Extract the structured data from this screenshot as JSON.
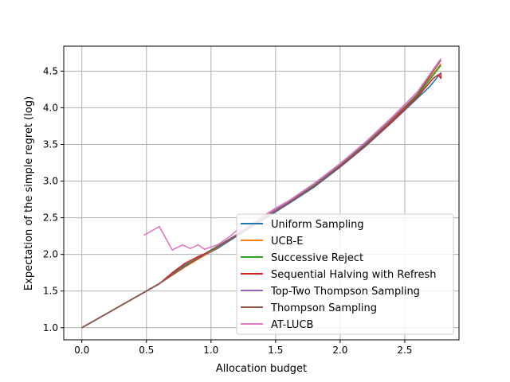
{
  "chart_data": {
    "type": "line",
    "title": "",
    "xlabel": "Allocation budget",
    "ylabel": "Expectation of the simple regret (log)",
    "xlim": [
      -0.14,
      2.92
    ],
    "ylim": [
      0.835,
      4.84
    ],
    "xticks": [
      0.0,
      0.5,
      1.0,
      1.5,
      2.0,
      2.5
    ],
    "xtick_labels": [
      "0.0",
      "0.5",
      "1.0",
      "1.5",
      "2.0",
      "2.5"
    ],
    "yticks": [
      1.0,
      1.5,
      2.0,
      2.5,
      3.0,
      3.5,
      4.0,
      4.5
    ],
    "ytick_labels": [
      "1.0",
      "1.5",
      "2.0",
      "2.5",
      "3.0",
      "3.5",
      "4.0",
      "4.5"
    ],
    "grid": true,
    "legend_position": "lower-right",
    "series": [
      {
        "name": "Uniform Sampling",
        "color": "#1f77b4",
        "points": [
          [
            0.0,
            1.0
          ],
          [
            0.2,
            1.2
          ],
          [
            0.4,
            1.4
          ],
          [
            0.6,
            1.6
          ],
          [
            0.8,
            1.86
          ],
          [
            0.95,
            1.99
          ],
          [
            1.05,
            2.08
          ],
          [
            1.2,
            2.25
          ],
          [
            1.4,
            2.47
          ],
          [
            1.6,
            2.69
          ],
          [
            1.8,
            2.92
          ],
          [
            2.0,
            3.19
          ],
          [
            2.2,
            3.48
          ],
          [
            2.4,
            3.8
          ],
          [
            2.55,
            4.05
          ],
          [
            2.7,
            4.3
          ],
          [
            2.78,
            4.48
          ]
        ]
      },
      {
        "name": "UCB-E",
        "color": "#ff7f0e",
        "points": [
          [
            0.0,
            1.0
          ],
          [
            0.2,
            1.2
          ],
          [
            0.4,
            1.4
          ],
          [
            0.6,
            1.6
          ],
          [
            0.8,
            1.83
          ],
          [
            1.0,
            2.04
          ],
          [
            1.2,
            2.26
          ],
          [
            1.4,
            2.48
          ],
          [
            1.6,
            2.7
          ],
          [
            1.8,
            2.94
          ],
          [
            2.0,
            3.21
          ],
          [
            2.2,
            3.5
          ],
          [
            2.4,
            3.84
          ],
          [
            2.6,
            4.18
          ],
          [
            2.78,
            4.6
          ]
        ]
      },
      {
        "name": "Successive Reject",
        "color": "#2ca02c",
        "points": [
          [
            0.0,
            1.0
          ],
          [
            0.2,
            1.2
          ],
          [
            0.4,
            1.4
          ],
          [
            0.6,
            1.6
          ],
          [
            0.8,
            1.85
          ],
          [
            1.0,
            2.06
          ],
          [
            1.2,
            2.27
          ],
          [
            1.4,
            2.49
          ],
          [
            1.6,
            2.71
          ],
          [
            1.8,
            2.95
          ],
          [
            2.0,
            3.22
          ],
          [
            2.2,
            3.51
          ],
          [
            2.4,
            3.83
          ],
          [
            2.6,
            4.17
          ],
          [
            2.78,
            4.58
          ]
        ]
      },
      {
        "name": "Sequential Halving with Refresh",
        "color": "#d62728",
        "points": [
          [
            0.0,
            1.0
          ],
          [
            0.2,
            1.2
          ],
          [
            0.4,
            1.4
          ],
          [
            0.6,
            1.6
          ],
          [
            0.7,
            1.75
          ],
          [
            0.8,
            1.88
          ],
          [
            0.9,
            1.97
          ],
          [
            1.0,
            2.05
          ],
          [
            1.2,
            2.26
          ],
          [
            1.4,
            2.48
          ],
          [
            1.6,
            2.7
          ],
          [
            1.8,
            2.93
          ],
          [
            2.0,
            3.2
          ],
          [
            2.2,
            3.49
          ],
          [
            2.4,
            3.81
          ],
          [
            2.6,
            4.15
          ],
          [
            2.72,
            4.4
          ],
          [
            2.76,
            4.45
          ],
          [
            2.78,
            4.4
          ],
          [
            2.78,
            4.48
          ]
        ]
      },
      {
        "name": "Top-Two Thompson Sampling",
        "color": "#9467bd",
        "points": [
          [
            0.0,
            1.0
          ],
          [
            0.2,
            1.2
          ],
          [
            0.4,
            1.4
          ],
          [
            0.6,
            1.6
          ],
          [
            0.8,
            1.84
          ],
          [
            1.0,
            2.05
          ],
          [
            1.2,
            2.27
          ],
          [
            1.4,
            2.5
          ],
          [
            1.6,
            2.72
          ],
          [
            1.8,
            2.96
          ],
          [
            2.0,
            3.23
          ],
          [
            2.2,
            3.53
          ],
          [
            2.4,
            3.86
          ],
          [
            2.6,
            4.22
          ],
          [
            2.78,
            4.67
          ]
        ]
      },
      {
        "name": "Thompson Sampling",
        "color": "#8c564b",
        "points": [
          [
            0.0,
            1.0
          ],
          [
            0.2,
            1.2
          ],
          [
            0.4,
            1.4
          ],
          [
            0.6,
            1.6
          ],
          [
            0.8,
            1.84
          ],
          [
            1.0,
            2.05
          ],
          [
            1.2,
            2.26
          ],
          [
            1.4,
            2.48
          ],
          [
            1.6,
            2.7
          ],
          [
            1.8,
            2.93
          ],
          [
            2.0,
            3.21
          ],
          [
            2.2,
            3.5
          ],
          [
            2.4,
            3.83
          ],
          [
            2.6,
            4.19
          ],
          [
            2.78,
            4.65
          ]
        ]
      },
      {
        "name": "AT-LUCB",
        "color": "#e377c2",
        "points": [
          [
            0.48,
            2.26
          ],
          [
            0.6,
            2.38
          ],
          [
            0.7,
            2.06
          ],
          [
            0.78,
            2.13
          ],
          [
            0.84,
            2.08
          ],
          [
            0.9,
            2.13
          ],
          [
            0.95,
            2.07
          ],
          [
            1.0,
            2.1
          ],
          [
            1.05,
            2.13
          ],
          [
            1.1,
            2.19
          ],
          [
            1.15,
            2.25
          ],
          [
            1.2,
            2.33
          ],
          [
            1.25,
            2.33
          ],
          [
            1.3,
            2.4
          ],
          [
            1.4,
            2.52
          ],
          [
            1.5,
            2.63
          ],
          [
            1.6,
            2.73
          ],
          [
            1.8,
            2.97
          ],
          [
            2.0,
            3.24
          ],
          [
            2.2,
            3.54
          ],
          [
            2.4,
            3.87
          ],
          [
            2.6,
            4.22
          ],
          [
            2.78,
            4.67
          ]
        ]
      }
    ]
  }
}
